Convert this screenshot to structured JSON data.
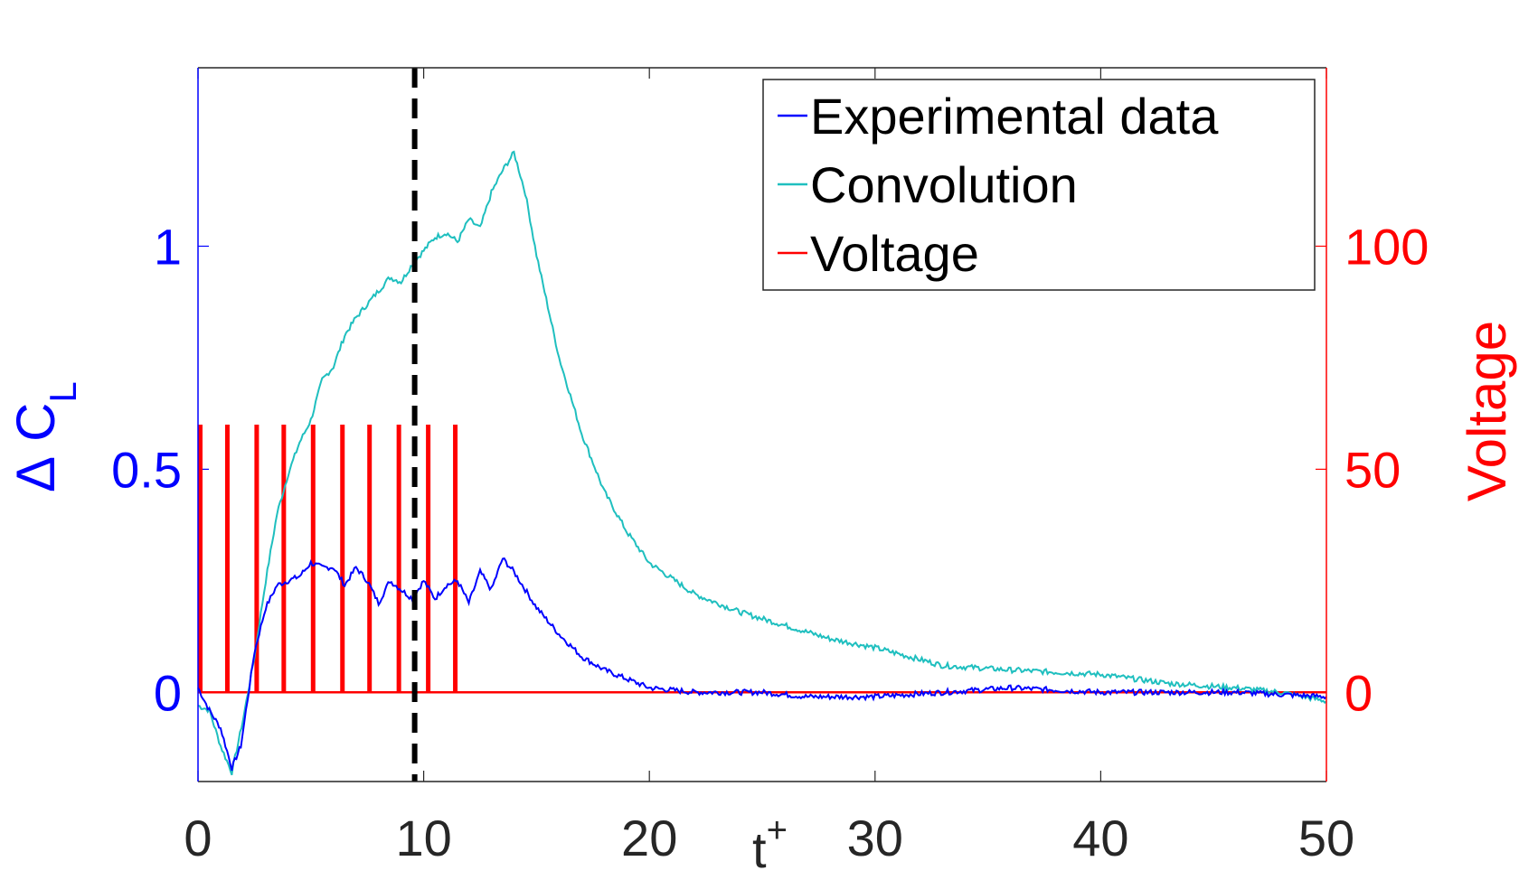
{
  "chart_data": {
    "type": "line",
    "xlabel": "t",
    "xlabel_sup": "+",
    "ylabel_left_symbol": "Δ",
    "ylabel_left": "C",
    "ylabel_left_sub": "L",
    "ylabel_right": "Voltage",
    "xlim": [
      0,
      50
    ],
    "ylim_left": [
      -0.2,
      1.4
    ],
    "ylim_right": [
      -20,
      140
    ],
    "x_ticks": [
      0,
      10,
      20,
      30,
      40,
      50
    ],
    "x_tick_labels": [
      "0",
      "10",
      "20",
      "30",
      "40",
      "50"
    ],
    "y_left_ticks": [
      0,
      0.5,
      1
    ],
    "y_left_tick_labels": [
      "0",
      "0.5",
      "1"
    ],
    "y_right_ticks": [
      0,
      50,
      100
    ],
    "y_right_tick_labels": [
      "0",
      "50",
      "100"
    ],
    "vline_x": 9.6,
    "legend_position": "top-right",
    "legend": [
      "Experimental data",
      "Convolution",
      "Voltage"
    ],
    "colors": {
      "experimental": "#0000ff",
      "convolution": "#1fbfbf",
      "voltage": "#ff0000",
      "vline": "#000000",
      "axes": "#262626"
    },
    "series": [
      {
        "name": "Experimental data",
        "axis": "left",
        "x": [
          0,
          0.5,
          1.0,
          1.5,
          1.9,
          2.5,
          3.0,
          3.5,
          4.0,
          4.5,
          5.0,
          5.5,
          6.0,
          6.5,
          7.0,
          7.5,
          8.0,
          8.5,
          9.0,
          9.5,
          10.0,
          10.5,
          11.0,
          11.5,
          12.0,
          12.5,
          13.0,
          13.5,
          14.0,
          15.0,
          16.0,
          17.0,
          18.0,
          19.0,
          20.0,
          22.0,
          25.0,
          27.0,
          30.0,
          33.0,
          36.0,
          40.0,
          43.0,
          46.0,
          50.0
        ],
        "y": [
          0.01,
          -0.04,
          -0.08,
          -0.17,
          -0.12,
          0.09,
          0.19,
          0.24,
          0.25,
          0.26,
          0.29,
          0.28,
          0.28,
          0.24,
          0.28,
          0.25,
          0.2,
          0.25,
          0.23,
          0.21,
          0.25,
          0.21,
          0.24,
          0.25,
          0.2,
          0.27,
          0.23,
          0.3,
          0.27,
          0.19,
          0.13,
          0.08,
          0.05,
          0.03,
          0.01,
          0.0,
          0.0,
          -0.01,
          -0.01,
          0.0,
          0.01,
          0.0,
          0.0,
          0.0,
          -0.01
        ]
      },
      {
        "name": "Convolution",
        "axis": "left",
        "x": [
          0,
          0.5,
          1.0,
          1.5,
          2.0,
          2.5,
          3.0,
          3.5,
          4.0,
          4.5,
          5.0,
          5.5,
          6.0,
          6.5,
          7.0,
          7.5,
          8.0,
          8.5,
          9.0,
          9.5,
          10.0,
          10.5,
          11.0,
          11.5,
          12.0,
          12.5,
          13.0,
          13.5,
          14.0,
          14.5,
          15.0,
          16.0,
          17.0,
          18.0,
          19.0,
          20.0,
          22.0,
          24.0,
          26.0,
          28.0,
          30.0,
          33.0,
          36.0,
          40.0,
          43.0,
          46.0,
          48.0,
          50.0
        ],
        "y": [
          -0.03,
          -0.04,
          -0.12,
          -0.18,
          -0.06,
          0.08,
          0.25,
          0.4,
          0.49,
          0.56,
          0.61,
          0.7,
          0.73,
          0.8,
          0.84,
          0.87,
          0.9,
          0.93,
          0.92,
          0.96,
          0.99,
          1.02,
          1.03,
          1.01,
          1.06,
          1.04,
          1.12,
          1.17,
          1.21,
          1.12,
          0.98,
          0.75,
          0.58,
          0.45,
          0.36,
          0.29,
          0.22,
          0.18,
          0.15,
          0.12,
          0.1,
          0.06,
          0.05,
          0.04,
          0.02,
          0.01,
          0.0,
          -0.02
        ]
      },
      {
        "name": "Voltage",
        "axis": "right",
        "type": "pulses",
        "pulse_times": [
          0.1,
          1.3,
          2.6,
          3.8,
          5.1,
          6.4,
          7.6,
          8.9,
          10.2,
          11.4
        ],
        "amplitude": 60,
        "baseline": 0,
        "pulse_width": 0.12
      }
    ]
  }
}
